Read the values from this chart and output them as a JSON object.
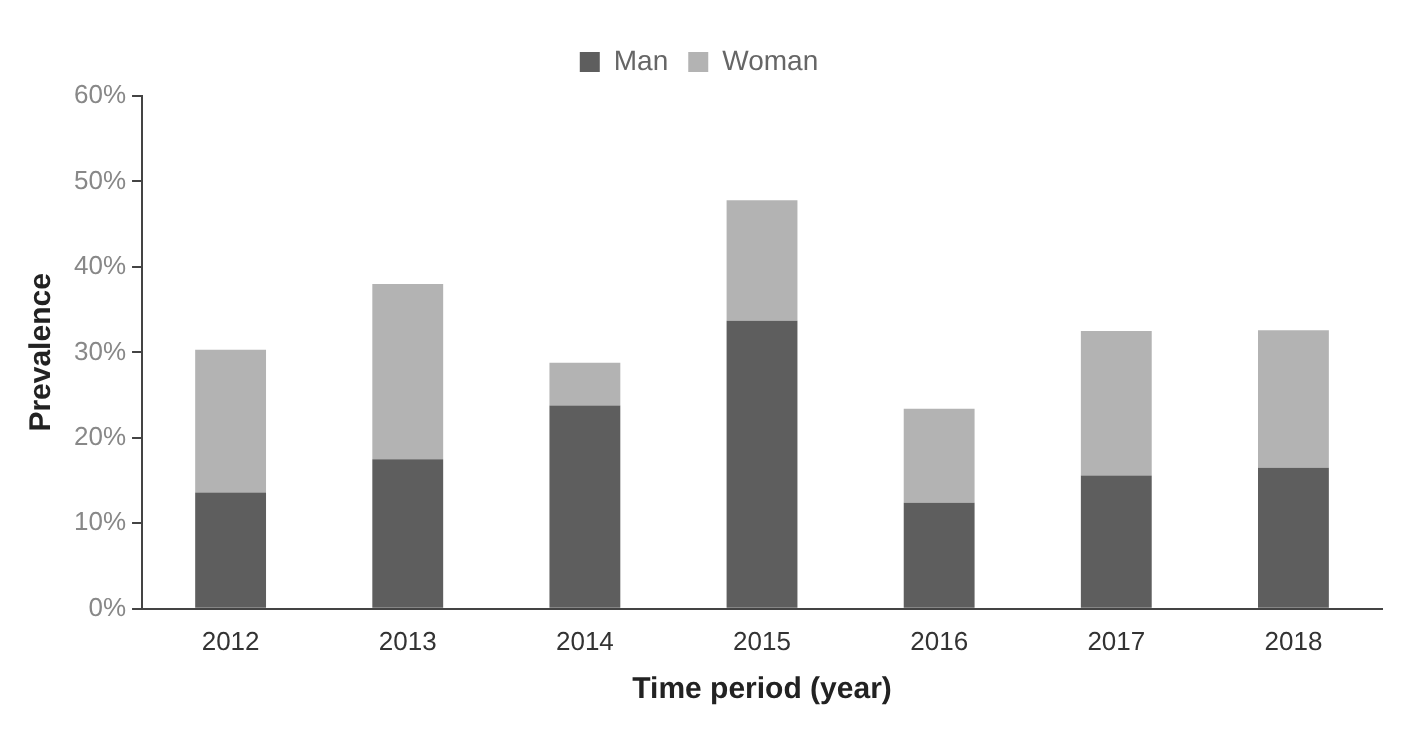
{
  "chart_data": {
    "type": "bar",
    "stacked": true,
    "xlabel": "Time period (year)",
    "ylabel": "Prevalence",
    "categories": [
      "2012",
      "2013",
      "2014",
      "2015",
      "2016",
      "2017",
      "2018"
    ],
    "series": [
      {
        "name": "Man",
        "color": "#5e5e5e",
        "values": [
          13.6,
          17.5,
          23.8,
          33.7,
          12.4,
          15.6,
          16.5
        ]
      },
      {
        "name": "Woman",
        "color": "#b3b3b3",
        "values": [
          16.7,
          20.5,
          5.0,
          14.1,
          11.0,
          16.9,
          16.1
        ]
      }
    ],
    "ylim": [
      0,
      60
    ],
    "yticks": [
      {
        "value": 0,
        "label": "0%"
      },
      {
        "value": 10,
        "label": "10%"
      },
      {
        "value": 20,
        "label": "20%"
      },
      {
        "value": 30,
        "label": "30%"
      },
      {
        "value": 40,
        "label": "40%"
      },
      {
        "value": 50,
        "label": "50%"
      },
      {
        "value": 60,
        "label": "60%"
      }
    ],
    "grid": false,
    "legend": "top"
  }
}
